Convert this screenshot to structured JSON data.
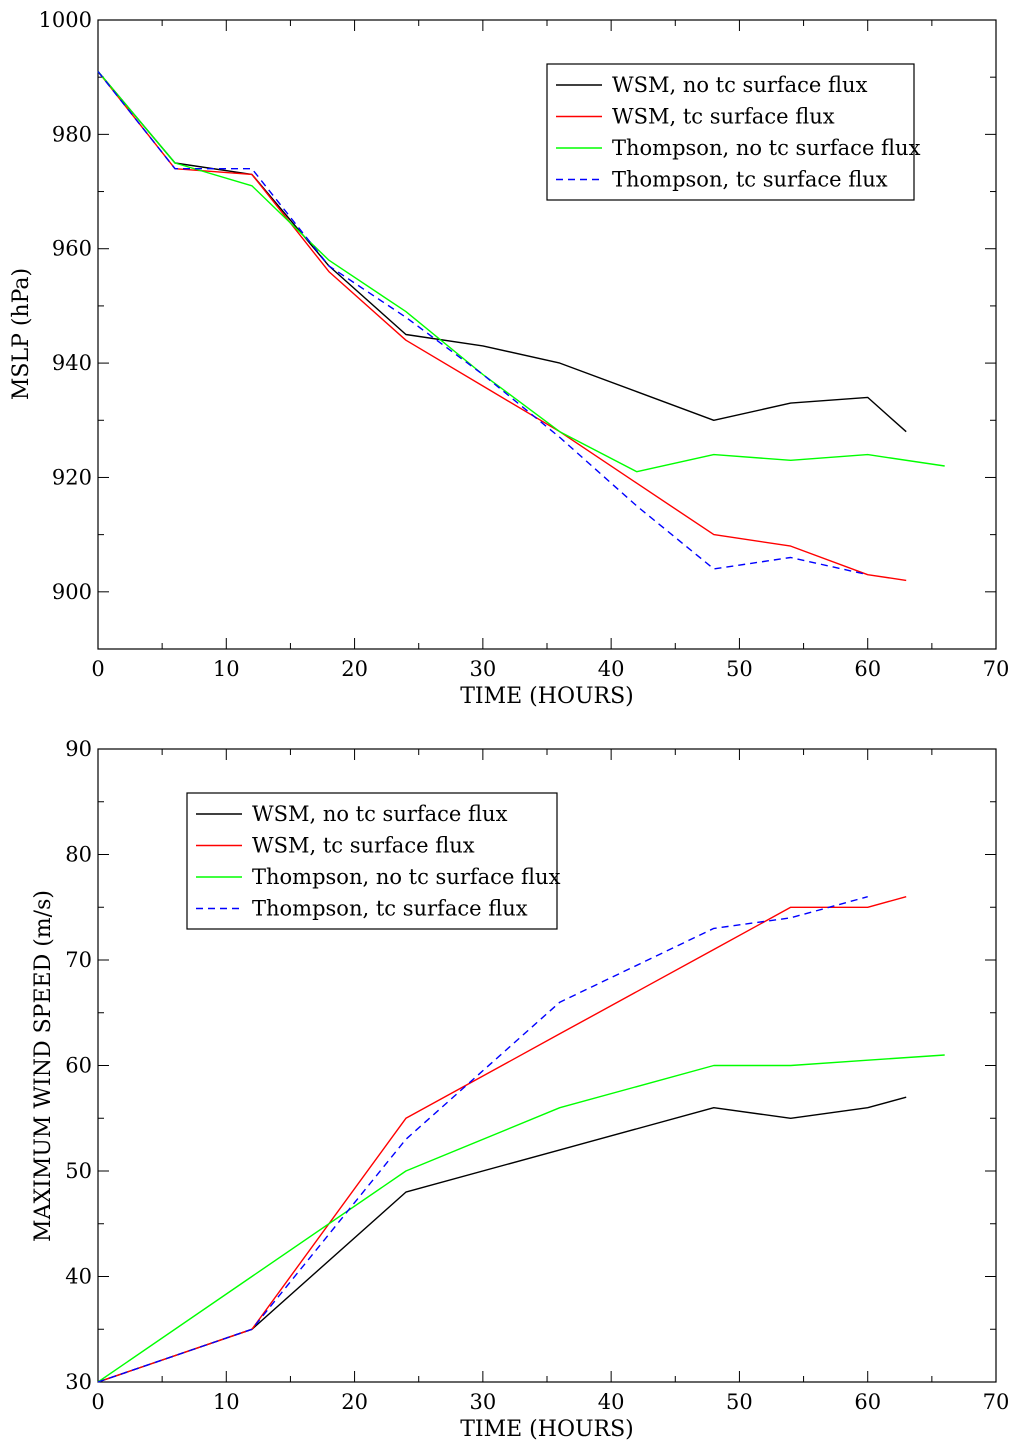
{
  "chart_data": [
    {
      "type": "line",
      "title": "",
      "xlabel": "TIME (HOURS)",
      "ylabel": "MSLP (hPa)",
      "xlim": [
        0,
        70
      ],
      "ylim": [
        890,
        1000
      ],
      "xticks": [
        0,
        10,
        20,
        30,
        40,
        50,
        60,
        70
      ],
      "yticks": [
        900,
        920,
        940,
        960,
        980,
        1000
      ],
      "legend_position": "top-right",
      "series": [
        {
          "name": "WSM, no tc surface flux",
          "color": "#000000",
          "dash": "solid",
          "x": [
            0,
            6,
            12,
            18,
            24,
            30,
            36,
            42,
            48,
            54,
            60,
            63
          ],
          "y": [
            991,
            975,
            973,
            957,
            945,
            943,
            940,
            935,
            930,
            933,
            934,
            928
          ]
        },
        {
          "name": "WSM, tc surface flux",
          "color": "#ff0000",
          "dash": "solid",
          "x": [
            0,
            6,
            12,
            18,
            24,
            30,
            36,
            42,
            48,
            54,
            60,
            63
          ],
          "y": [
            991,
            974,
            973,
            956,
            944,
            936,
            928,
            919,
            910,
            908,
            903,
            902
          ]
        },
        {
          "name": "Thompson, no tc surface flux",
          "color": "#00ff00",
          "dash": "solid",
          "x": [
            0,
            6,
            12,
            18,
            24,
            30,
            36,
            42,
            48,
            54,
            60,
            66
          ],
          "y": [
            991,
            975,
            971,
            958,
            949,
            938,
            928,
            921,
            924,
            923,
            924,
            922
          ]
        },
        {
          "name": "Thompson, tc surface flux",
          "color": "#0000ff",
          "dash": "dashed",
          "x": [
            0,
            6,
            12,
            18,
            24,
            30,
            36,
            42,
            48,
            54,
            60
          ],
          "y": [
            991,
            974,
            974,
            957,
            948,
            938,
            927,
            915,
            904,
            906,
            903
          ]
        }
      ]
    },
    {
      "type": "line",
      "title": "",
      "xlabel": "TIME (HOURS)",
      "ylabel": "MAXIMUM WIND SPEED (m/s)",
      "xlim": [
        0,
        70
      ],
      "ylim": [
        30,
        90
      ],
      "xticks": [
        0,
        10,
        20,
        30,
        40,
        50,
        60,
        70
      ],
      "yticks": [
        30,
        40,
        50,
        60,
        70,
        80,
        90
      ],
      "legend_position": "top-left",
      "series": [
        {
          "name": "WSM, no tc surface flux",
          "color": "#000000",
          "dash": "solid",
          "x": [
            0,
            12,
            24,
            36,
            48,
            54,
            60,
            63
          ],
          "y": [
            30,
            35,
            48,
            52,
            56,
            55,
            56,
            57
          ]
        },
        {
          "name": "WSM, tc surface flux",
          "color": "#ff0000",
          "dash": "solid",
          "x": [
            0,
            12,
            24,
            36,
            48,
            54,
            60,
            63
          ],
          "y": [
            30,
            35,
            55,
            63,
            71,
            75,
            75,
            76
          ]
        },
        {
          "name": "Thompson, no tc surface flux",
          "color": "#00ff00",
          "dash": "solid",
          "x": [
            0,
            12,
            24,
            36,
            48,
            54,
            60,
            66
          ],
          "y": [
            30,
            40,
            50,
            56,
            60,
            60,
            60.5,
            61
          ]
        },
        {
          "name": "Thompson, tc surface flux",
          "color": "#0000ff",
          "dash": "dashed",
          "x": [
            0,
            12,
            24,
            36,
            48,
            54,
            60
          ],
          "y": [
            30,
            35,
            53,
            66,
            73,
            74,
            76
          ]
        }
      ]
    }
  ]
}
